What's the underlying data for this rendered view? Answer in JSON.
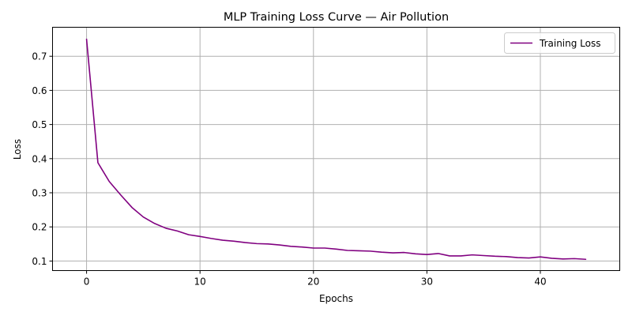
{
  "chart_data": {
    "type": "line",
    "title": "MLP Training Loss Curve — Air Pollution",
    "xlabel": "Epochs",
    "ylabel": "Loss",
    "xlim": [
      -3,
      47
    ],
    "ylim": [
      0.072,
      0.785
    ],
    "xticks": [
      0,
      10,
      20,
      30,
      40
    ],
    "yticks": [
      0.1,
      0.2,
      0.3,
      0.4,
      0.5,
      0.6,
      0.7
    ],
    "grid": true,
    "legend": "top-right",
    "series": [
      {
        "name": "Training Loss",
        "color": "#800080",
        "x": [
          0,
          1,
          2,
          3,
          4,
          5,
          6,
          7,
          8,
          9,
          10,
          11,
          12,
          13,
          14,
          15,
          16,
          17,
          18,
          19,
          20,
          21,
          22,
          23,
          24,
          25,
          26,
          27,
          28,
          29,
          30,
          31,
          32,
          33,
          34,
          35,
          36,
          37,
          38,
          39,
          40,
          41,
          42,
          43,
          44
        ],
        "y": [
          0.75,
          0.388,
          0.333,
          0.294,
          0.257,
          0.229,
          0.21,
          0.196,
          0.188,
          0.177,
          0.172,
          0.166,
          0.161,
          0.158,
          0.154,
          0.151,
          0.15,
          0.147,
          0.143,
          0.141,
          0.138,
          0.138,
          0.135,
          0.131,
          0.13,
          0.129,
          0.126,
          0.124,
          0.125,
          0.121,
          0.119,
          0.122,
          0.115,
          0.115,
          0.118,
          0.116,
          0.114,
          0.113,
          0.11,
          0.109,
          0.112,
          0.108,
          0.106,
          0.107,
          0.105
        ]
      }
    ]
  }
}
